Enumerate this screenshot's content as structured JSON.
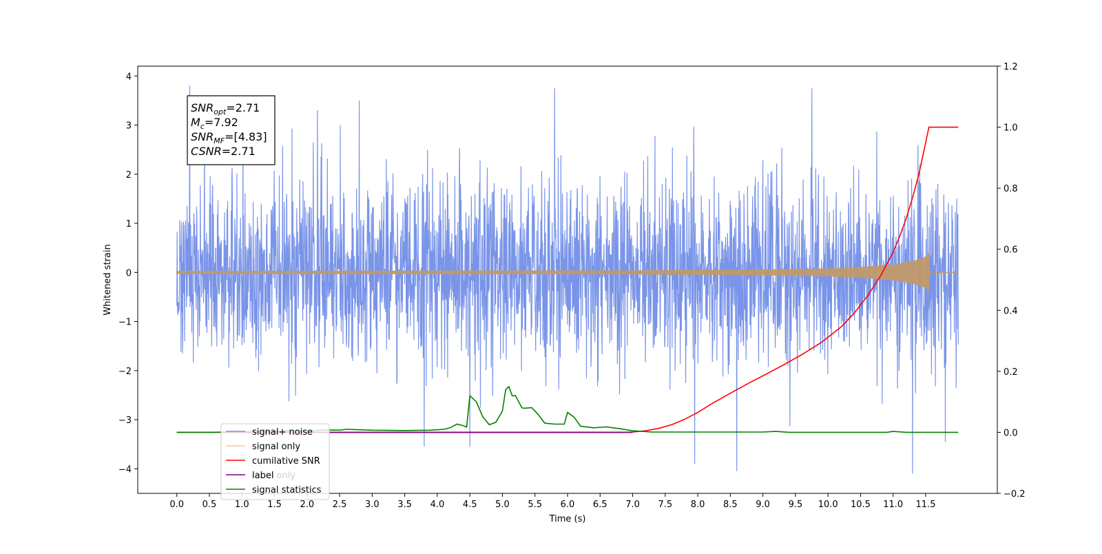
{
  "chart_data": {
    "type": "line",
    "title": "",
    "xlabel": "Time (s)",
    "ylabel": "Whitened strain",
    "ylabel_right": "",
    "xlim": [
      -0.6,
      12.6
    ],
    "ylim": [
      -4.5,
      4.2
    ],
    "ylim_right": [
      -0.2,
      1.2
    ],
    "x_ticks": [
      0.0,
      0.5,
      1.0,
      1.5,
      2.0,
      2.5,
      3.0,
      3.5,
      4.0,
      4.5,
      5.0,
      5.5,
      6.0,
      6.5,
      7.0,
      7.5,
      8.0,
      8.5,
      9.0,
      9.5,
      10.0,
      10.5,
      11.0,
      11.5
    ],
    "x_tick_labels": [
      "0.0",
      "0.5",
      "1.0",
      "1.5",
      "2.0",
      "2.5",
      "3.0",
      "3.5",
      "4.0",
      "4.5",
      "5.0",
      "5.5",
      "6.0",
      "6.5",
      "7.0",
      "7.5",
      "8.0",
      "8.5",
      "9.0",
      "9.5",
      "10.0",
      "10.5",
      "11.0",
      "11.5"
    ],
    "y_ticks": [
      -4,
      -3,
      -2,
      -1,
      0,
      1,
      2,
      3,
      4
    ],
    "y_tick_labels": [
      "−4",
      "−3",
      "−2",
      "−1",
      "0",
      "1",
      "2",
      "3",
      "4"
    ],
    "y_ticks_right": [
      -0.2,
      0.0,
      0.2,
      0.4,
      0.6,
      0.8,
      1.0,
      1.2
    ],
    "y_tick_labels_right": [
      "−0.2",
      "0.0",
      "0.2",
      "0.4",
      "0.6",
      "0.8",
      "1.0",
      "1.2"
    ],
    "grid": false,
    "legend_position": "bottom-left",
    "series": [
      {
        "name": "signal+ noise",
        "axis": "left",
        "color": "#7994e8",
        "description_stats": {
          "x_start": 0.0,
          "x_end": 12.0,
          "typical_range": [
            -2.2,
            2.2
          ],
          "max": 3.8,
          "min": -4.1
        },
        "notable_extremes": [
          {
            "x": 0.2,
            "y": 3.8
          },
          {
            "x": 2.8,
            "y": 3.5
          },
          {
            "x": 3.8,
            "y": -3.55
          },
          {
            "x": 4.5,
            "y": -3.55
          },
          {
            "x": 5.8,
            "y": 3.75
          },
          {
            "x": 7.95,
            "y": -3.9
          },
          {
            "x": 8.6,
            "y": -4.05
          },
          {
            "x": 9.75,
            "y": 3.75
          },
          {
            "x": 11.3,
            "y": -4.1
          },
          {
            "x": 11.8,
            "y": -3.45
          }
        ]
      },
      {
        "name": "signal only",
        "axis": "left",
        "color": "#ffb84d",
        "description_stats": {
          "x_start": 0.0,
          "x_end": 12.0,
          "peak_x": 11.55,
          "envelope": [
            [
              0.0,
              0.02
            ],
            [
              7.0,
              0.03
            ],
            [
              9.0,
              0.05
            ],
            [
              10.0,
              0.07
            ],
            [
              10.5,
              0.1
            ],
            [
              11.0,
              0.15
            ],
            [
              11.3,
              0.22
            ],
            [
              11.5,
              0.3
            ],
            [
              11.55,
              0.4
            ],
            [
              11.56,
              0.0
            ],
            [
              12.0,
              0.0
            ]
          ]
        }
      },
      {
        "name": "cumilative SNR",
        "axis": "right",
        "color": "#ff0000",
        "x": [
          0.0,
          6.8,
          7.0,
          7.2,
          7.4,
          7.6,
          7.8,
          8.0,
          8.2,
          8.5,
          8.8,
          9.0,
          9.3,
          9.6,
          9.9,
          10.2,
          10.4,
          10.6,
          10.8,
          11.0,
          11.1,
          11.2,
          11.3,
          11.4,
          11.45,
          11.5,
          11.55,
          11.6,
          12.0
        ],
        "values": [
          0.0,
          0.0,
          0.001,
          0.005,
          0.013,
          0.025,
          0.043,
          0.065,
          0.092,
          0.128,
          0.163,
          0.185,
          0.219,
          0.255,
          0.295,
          0.345,
          0.39,
          0.445,
          0.51,
          0.59,
          0.642,
          0.7,
          0.77,
          0.85,
          0.9,
          0.95,
          1.0,
          1.0,
          1.0
        ]
      },
      {
        "name": "label only",
        "axis": "right",
        "color": "#800080",
        "x": [
          0.7,
          7.0
        ],
        "values": [
          0.0,
          0.0
        ]
      },
      {
        "name": "label",
        "axis": "right",
        "color": "#800080",
        "x": [
          0.7,
          7.0
        ],
        "values": [
          0.0,
          0.0
        ]
      },
      {
        "name": "signal statistics",
        "axis": "right",
        "color": "#008000",
        "x": [
          0.0,
          0.5,
          1.0,
          1.5,
          1.7,
          2.0,
          2.3,
          2.5,
          2.6,
          3.0,
          3.5,
          3.9,
          4.1,
          4.2,
          4.3,
          4.4,
          4.45,
          4.5,
          4.6,
          4.7,
          4.8,
          4.9,
          5.0,
          5.05,
          5.1,
          5.15,
          5.2,
          5.3,
          5.35,
          5.45,
          5.55,
          5.65,
          5.8,
          5.95,
          6.0,
          6.1,
          6.2,
          6.4,
          6.6,
          6.8,
          7.0,
          7.3,
          8.0,
          9.0,
          9.2,
          9.4,
          10.0,
          10.9,
          11.0,
          11.2,
          11.5,
          12.0
        ],
        "values": [
          0.0,
          0.0,
          0.002,
          0.003,
          0.006,
          0.005,
          0.008,
          0.007,
          0.01,
          0.007,
          0.006,
          0.007,
          0.01,
          0.015,
          0.027,
          0.022,
          0.017,
          0.12,
          0.1,
          0.05,
          0.025,
          0.033,
          0.07,
          0.14,
          0.15,
          0.12,
          0.12,
          0.08,
          0.079,
          0.081,
          0.058,
          0.03,
          0.027,
          0.027,
          0.065,
          0.05,
          0.02,
          0.015,
          0.018,
          0.012,
          0.005,
          0.001,
          0.001,
          0.001,
          0.003,
          0.0,
          0.0,
          0.0,
          0.003,
          0.0,
          0.0,
          0.0
        ]
      }
    ],
    "legend_entries": [
      "signal+ noise",
      "signal only",
      "cumilative SNR",
      "label only",
      "label",
      "signal statistics"
    ],
    "annotations": [
      {
        "base": "SNR",
        "sub": "opt",
        "value": "=2.71"
      },
      {
        "base": "M",
        "sub": "c",
        "value": "=7.92"
      },
      {
        "base": "SNR",
        "sub": "MF",
        "value": "=[4.83]"
      },
      {
        "base": "CSNR",
        "sub": "",
        "value": "=2.71"
      }
    ]
  }
}
